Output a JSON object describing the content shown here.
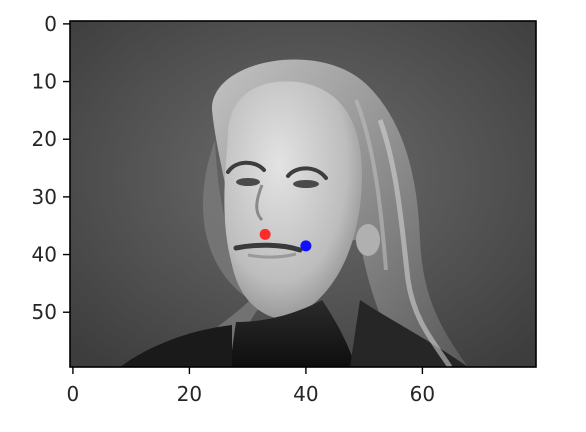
{
  "chart_data": {
    "type": "scatter",
    "background": "grayscale image",
    "x_axis": {
      "range": [
        -0.5,
        79.5
      ],
      "ticks": [
        0,
        20,
        40,
        60
      ],
      "tick_labels": [
        "0",
        "20",
        "40",
        "60"
      ]
    },
    "y_axis": {
      "range": [
        59.5,
        -0.5
      ],
      "inverted": true,
      "ticks": [
        0,
        10,
        20,
        30,
        40,
        50
      ],
      "tick_labels": [
        "0",
        "10",
        "20",
        "30",
        "40",
        "50"
      ]
    },
    "points": [
      {
        "x": 33,
        "y": 36.5,
        "color": "#ff2b2b"
      },
      {
        "x": 40,
        "y": 38.5,
        "color": "#1010ff"
      }
    ],
    "grid": false,
    "legend": false
  }
}
